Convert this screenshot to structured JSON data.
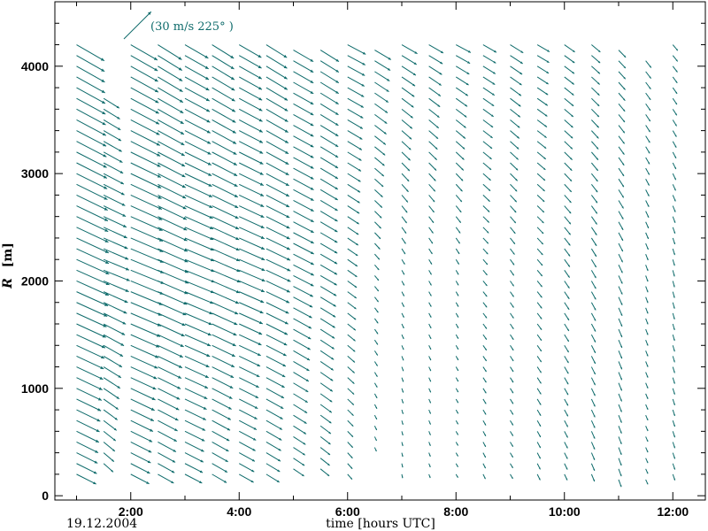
{
  "chart_data": {
    "type": "vector",
    "title": "",
    "date_label": "19.12.2004",
    "xlabel": "time [hours UTC]",
    "ylabel_symbol": "R",
    "ylabel_unit": "[m]",
    "xlim": [
      0.6,
      12.6
    ],
    "ylim": [
      -40,
      4600
    ],
    "x_ticks": [
      {
        "value": 2,
        "label": "2:00"
      },
      {
        "value": 4,
        "label": "4:00"
      },
      {
        "value": 6,
        "label": "6:00"
      },
      {
        "value": 8,
        "label": "8:00"
      },
      {
        "value": 10,
        "label": "10:00"
      },
      {
        "value": 12,
        "label": "12:00"
      }
    ],
    "y_ticks": [
      {
        "value": 0,
        "label": "0"
      },
      {
        "value": 1000,
        "label": "1000"
      },
      {
        "value": 2000,
        "label": "2000"
      },
      {
        "value": 3000,
        "label": "3000"
      },
      {
        "value": 4000,
        "label": "4000"
      }
    ],
    "reference_vector": {
      "speed": 30,
      "direction_deg": 225,
      "label": "(30 m/s 225° )"
    },
    "arrow_color": "#0e6b6b",
    "series": [
      {
        "time": 1.0,
        "r_min": 200,
        "r_max": 4200,
        "speed": [
          16,
          28,
          25
        ],
        "direction": [
          297,
          294,
          300
        ]
      },
      {
        "time": 1.5,
        "r_min": 300,
        "r_max": 3700,
        "speed": [
          8,
          22,
          12
        ],
        "direction": [
          315,
          292,
          305
        ]
      },
      {
        "time": 2.0,
        "r_min": 200,
        "r_max": 4200,
        "speed": [
          15,
          28,
          24
        ],
        "direction": [
          298,
          292,
          300
        ]
      },
      {
        "time": 2.5,
        "r_min": 200,
        "r_max": 4200,
        "speed": [
          13,
          26,
          22
        ],
        "direction": [
          300,
          293,
          302
        ]
      },
      {
        "time": 3.0,
        "r_min": 200,
        "r_max": 4200,
        "speed": [
          14,
          25,
          21
        ],
        "direction": [
          298,
          292,
          300
        ]
      },
      {
        "time": 3.5,
        "r_min": 200,
        "r_max": 4200,
        "speed": [
          12,
          24,
          20
        ],
        "direction": [
          301,
          293,
          302
        ]
      },
      {
        "time": 4.0,
        "r_min": 200,
        "r_max": 4200,
        "speed": [
          12,
          22,
          20
        ],
        "direction": [
          300,
          293,
          300
        ]
      },
      {
        "time": 4.5,
        "r_min": 200,
        "r_max": 4200,
        "speed": [
          11,
          21,
          19
        ],
        "direction": [
          302,
          295,
          302
        ]
      },
      {
        "time": 5.0,
        "r_min": 250,
        "r_max": 4200,
        "speed": [
          9,
          18,
          18
        ],
        "direction": [
          305,
          297,
          300
        ]
      },
      {
        "time": 5.5,
        "r_min": 250,
        "r_max": 4200,
        "speed": [
          8,
          15,
          17
        ],
        "direction": [
          310,
          300,
          302
        ]
      },
      {
        "time": 6.0,
        "r_min": 200,
        "r_max": 4200,
        "speed": [
          5,
          9,
          16
        ],
        "direction": [
          320,
          305,
          298
        ]
      },
      {
        "time": 6.5,
        "r_min": 450,
        "r_max": 4200,
        "speed": [
          3,
          5,
          15
        ],
        "direction": [
          340,
          320,
          300
        ]
      },
      {
        "time": 7.0,
        "r_min": 200,
        "r_max": 4200,
        "speed": [
          3,
          4,
          14
        ],
        "direction": [
          350,
          330,
          300
        ]
      },
      {
        "time": 7.5,
        "r_min": 200,
        "r_max": 4200,
        "speed": [
          3,
          4,
          13
        ],
        "direction": [
          340,
          330,
          300
        ]
      },
      {
        "time": 8.0,
        "r_min": 200,
        "r_max": 4200,
        "speed": [
          3,
          4,
          13
        ],
        "direction": [
          330,
          330,
          298
        ]
      },
      {
        "time": 8.5,
        "r_min": 200,
        "r_max": 4200,
        "speed": [
          4,
          5,
          12
        ],
        "direction": [
          335,
          320,
          300
        ]
      },
      {
        "time": 9.0,
        "r_min": 200,
        "r_max": 4200,
        "speed": [
          4,
          5,
          12
        ],
        "direction": [
          330,
          325,
          302
        ]
      },
      {
        "time": 9.5,
        "r_min": 200,
        "r_max": 4200,
        "speed": [
          5,
          6,
          11
        ],
        "direction": [
          335,
          320,
          300
        ]
      },
      {
        "time": 10.0,
        "r_min": 200,
        "r_max": 4200,
        "speed": [
          5,
          7,
          10
        ],
        "direction": [
          335,
          325,
          305
        ]
      },
      {
        "time": 10.5,
        "r_min": 200,
        "r_max": 4200,
        "speed": [
          6,
          7,
          9
        ],
        "direction": [
          338,
          330,
          310
        ]
      },
      {
        "time": 11.0,
        "r_min": 150,
        "r_max": 4200,
        "speed": [
          6,
          7,
          8
        ],
        "direction": [
          340,
          335,
          315
        ]
      },
      {
        "time": 11.5,
        "r_min": 150,
        "r_max": 4100,
        "speed": [
          4,
          5,
          7
        ],
        "direction": [
          335,
          340,
          320
        ]
      },
      {
        "time": 12.0,
        "r_min": 200,
        "r_max": 4200,
        "speed": [
          5,
          5,
          6
        ],
        "direction": [
          340,
          345,
          320
        ]
      }
    ]
  }
}
